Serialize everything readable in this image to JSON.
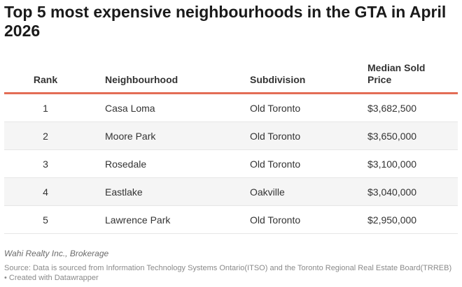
{
  "chart_data": {
    "type": "table",
    "title": "Top 5 most expensive neighbourhoods in the GTA in April 2026",
    "columns": [
      "Rank",
      "Neighbourhood",
      "Subdivision",
      "Median Sold Price"
    ],
    "rows": [
      {
        "rank": "1",
        "neighbourhood": "Casa Loma",
        "subdivision": "Old Toronto",
        "price": "$3,682,500"
      },
      {
        "rank": "2",
        "neighbourhood": "Moore Park",
        "subdivision": "Old Toronto",
        "price": "$3,650,000"
      },
      {
        "rank": "3",
        "neighbourhood": "Rosedale",
        "subdivision": "Old Toronto",
        "price": "$3,100,000"
      },
      {
        "rank": "4",
        "neighbourhood": "Eastlake",
        "subdivision": "Oakville",
        "price": "$3,040,000"
      },
      {
        "rank": "5",
        "neighbourhood": "Lawrence Park",
        "subdivision": "Old Toronto",
        "price": "$2,950,000"
      }
    ]
  },
  "colors": {
    "header_rule": "#e36d55",
    "alt_row": "#f5f5f5"
  },
  "footer": {
    "credit": "Wahi Realty Inc., Brokerage",
    "source": "Source: Data is sourced from Information Technology Systems Ontario(ITSO) and the Toronto Regional Real Estate Board(TRREB) • Created with Datawrapper"
  }
}
